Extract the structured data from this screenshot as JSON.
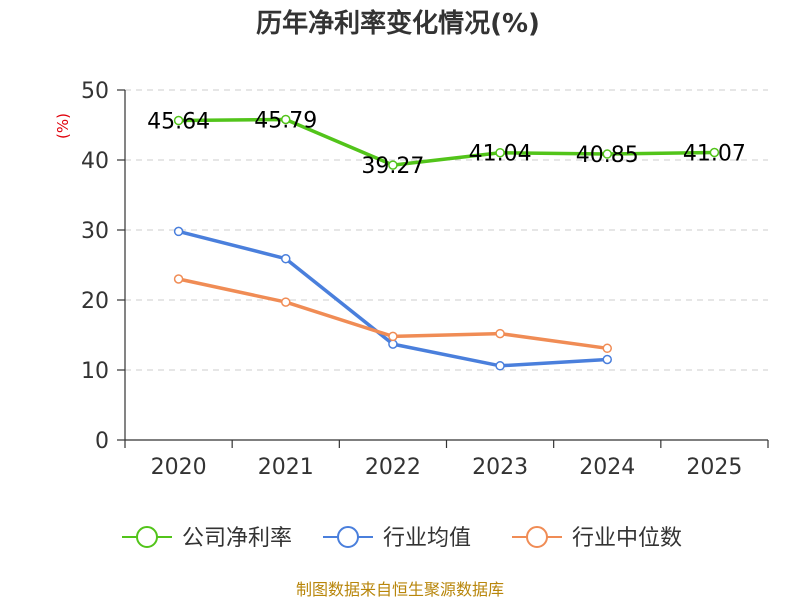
{
  "colors": {
    "company": "#52c41a",
    "industry_avg": "#4a7fdc",
    "industry_median": "#f08c55",
    "source": "#b8860b",
    "ylabel": "#e0000b"
  },
  "chart_data": {
    "type": "line",
    "title": "历年净利率变化情况(%)",
    "ylabel": "(%)",
    "xlabel": "",
    "categories": [
      "2020",
      "2021",
      "2022",
      "2023",
      "2024",
      "2025"
    ],
    "ylim": [
      0,
      50
    ],
    "yticks": [
      0,
      10,
      20,
      30,
      40,
      50
    ],
    "grid": true,
    "legend_position": "bottom",
    "series": [
      {
        "name": "公司净利率",
        "color_key": "company",
        "values": [
          45.64,
          45.79,
          39.27,
          41.04,
          40.85,
          41.07
        ],
        "labels": [
          "45.64",
          "45.79",
          "39.27",
          "41.04",
          "40.85",
          "41.07"
        ]
      },
      {
        "name": "行业均值",
        "color_key": "industry_avg",
        "values": [
          29.8,
          25.9,
          13.7,
          10.6,
          11.5,
          null
        ]
      },
      {
        "name": "行业中位数",
        "color_key": "industry_median",
        "values": [
          23.0,
          19.7,
          14.8,
          15.2,
          13.1,
          null
        ]
      }
    ]
  },
  "footer": {
    "source": "制图数据来自恒生聚源数据库"
  }
}
